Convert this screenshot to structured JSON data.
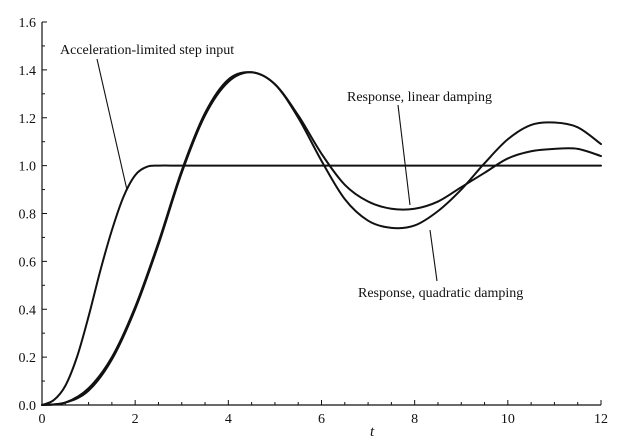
{
  "chart_data": {
    "type": "line",
    "title": "",
    "xlabel": "t",
    "ylabel": "",
    "xlim": [
      0,
      12
    ],
    "ylim": [
      0,
      1.6
    ],
    "xticks": [
      0,
      2,
      4,
      6,
      8,
      10,
      12
    ],
    "yticks": [
      0.0,
      0.2,
      0.4,
      0.6,
      0.8,
      1.0,
      1.2,
      1.4,
      1.6
    ],
    "xtick_labels": [
      "0",
      "2",
      "4",
      "6",
      "8",
      "10",
      "12"
    ],
    "ytick_labels": [
      "0.0",
      "0.2",
      "0.4",
      "0.6",
      "0.8",
      "1.0",
      "1.2",
      "1.4",
      "1.6"
    ],
    "grid": false,
    "series": [
      {
        "name": "Acceleration-limited step input",
        "x": [
          0,
          0.25,
          0.5,
          0.75,
          1.0,
          1.25,
          1.5,
          1.75,
          2.0,
          2.25,
          2.5,
          3,
          4,
          5,
          6,
          7,
          8,
          9,
          10,
          11,
          12
        ],
        "y": [
          0,
          0.02,
          0.08,
          0.2,
          0.37,
          0.56,
          0.73,
          0.87,
          0.96,
          0.995,
          1.0,
          1.0,
          1.0,
          1.0,
          1.0,
          1.0,
          1.0,
          1.0,
          1.0,
          1.0,
          1.0
        ]
      },
      {
        "name": "Response, linear damping",
        "x": [
          0,
          0.5,
          1.0,
          1.5,
          2.0,
          2.5,
          3.0,
          3.5,
          4.0,
          4.5,
          5.0,
          5.5,
          6.0,
          6.5,
          7.0,
          7.5,
          8.0,
          8.5,
          9.0,
          9.5,
          10.0,
          10.5,
          11.0,
          11.5,
          12.0
        ],
        "y": [
          0,
          0.01,
          0.06,
          0.19,
          0.4,
          0.67,
          0.97,
          1.21,
          1.35,
          1.39,
          1.34,
          1.21,
          1.05,
          0.92,
          0.85,
          0.82,
          0.82,
          0.85,
          0.91,
          0.97,
          1.03,
          1.06,
          1.07,
          1.07,
          1.04
        ]
      },
      {
        "name": "Response, quadratic damping",
        "x": [
          0,
          0.5,
          1.0,
          1.5,
          2.0,
          2.5,
          3.0,
          3.5,
          4.0,
          4.5,
          5.0,
          5.5,
          6.0,
          6.5,
          7.0,
          7.5,
          8.0,
          8.5,
          9.0,
          9.5,
          10.0,
          10.5,
          11.0,
          11.5,
          12.0
        ],
        "y": [
          0,
          0.01,
          0.07,
          0.2,
          0.41,
          0.68,
          0.98,
          1.22,
          1.36,
          1.39,
          1.34,
          1.2,
          1.02,
          0.86,
          0.77,
          0.74,
          0.75,
          0.81,
          0.9,
          1.01,
          1.11,
          1.17,
          1.18,
          1.16,
          1.09
        ]
      }
    ],
    "annotations": [
      {
        "text": "Acceleration-limited step input",
        "target_series": 0
      },
      {
        "text": "Response, linear damping",
        "target_series": 1
      },
      {
        "text": "Response, quadratic damping",
        "target_series": 2
      }
    ]
  }
}
